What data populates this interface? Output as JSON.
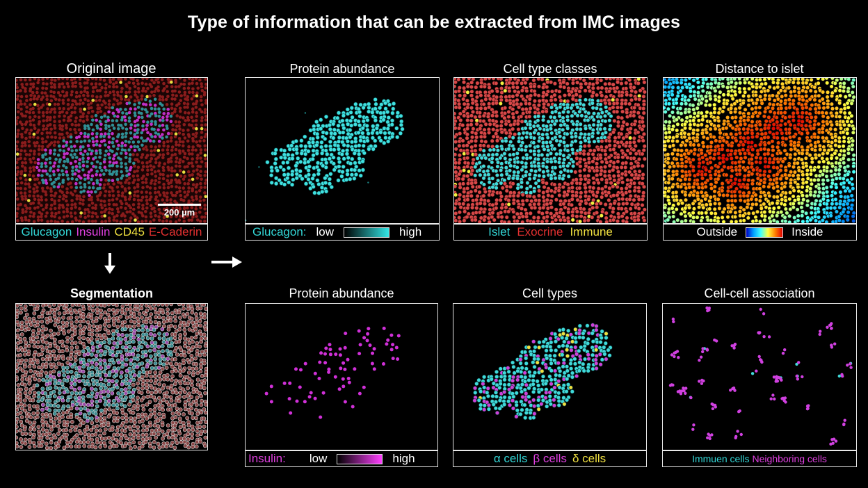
{
  "title": "Type of information that can be extracted from IMC images",
  "panels": {
    "original": {
      "title": "Original image",
      "scalebar": "200 µm",
      "legend": [
        {
          "text": "Glucagon",
          "color": "#33d6d6"
        },
        {
          "text": "Insulin",
          "color": "#e040e0"
        },
        {
          "text": "CD45",
          "color": "#f0e040"
        },
        {
          "text": "E-Caderin",
          "color": "#e23030"
        }
      ]
    },
    "protein_glucagon": {
      "title": "Protein abundance",
      "marker": "Glucagon:",
      "low": "low",
      "high": "high",
      "marker_color": "#33d6d6"
    },
    "cell_type_classes": {
      "title": "Cell type classes",
      "legend": [
        {
          "text": "Islet",
          "color": "#33d6d6"
        },
        {
          "text": "Exocrine",
          "color": "#e23030"
        },
        {
          "text": "Immune",
          "color": "#f0e040"
        }
      ]
    },
    "distance": {
      "title": "Distance to islet",
      "outside": "Outside",
      "inside": "Inside"
    },
    "segmentation": {
      "title": "Segmentation"
    },
    "protein_insulin": {
      "title": "Protein abundance",
      "marker": "Insulin:",
      "low": "low",
      "high": "high",
      "marker_color": "#e040e0"
    },
    "cell_types": {
      "title": "Cell types",
      "legend": [
        {
          "text": "α cells",
          "color": "#33d6d6"
        },
        {
          "text": "β cells",
          "color": "#e040e0"
        },
        {
          "text": "δ cells",
          "color": "#f0e040"
        }
      ]
    },
    "cell_cell": {
      "title": "Cell-cell association",
      "legend": [
        {
          "text": "Immuen cells",
          "color": "#33d6d6"
        },
        {
          "text": "Neighboring cells",
          "color": "#e040e0"
        }
      ]
    }
  }
}
